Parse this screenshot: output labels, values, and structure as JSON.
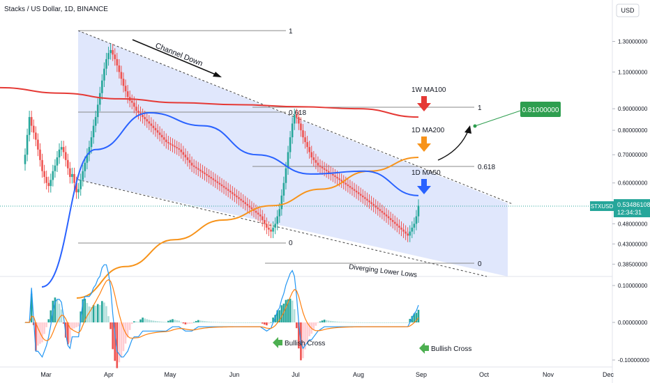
{
  "header": {
    "title": "Stacks / US Dollar, 1D, BINANCE",
    "currency_button": "USD"
  },
  "colors": {
    "up": "#26a69a",
    "down": "#ef5350",
    "ma100w": "#e53935",
    "ma200d": "#f7931a",
    "ma50d": "#2962ff",
    "channel_fill": "#dbe3fb",
    "macd_line": "#2196f3",
    "signal_line": "#ff7f0e",
    "target_box": "#2e9e4f"
  },
  "chart_data": [
    {
      "type": "candlestick",
      "symbol": "STXUSD",
      "y_scale": "log",
      "y_ticks": [
        "1.30000000",
        "1.10000000",
        "0.90000000",
        "0.80000000",
        "0.70000000",
        "0.60000000",
        "0.48000000",
        "0.43000000",
        "0.38500000"
      ],
      "x_ticks": [
        "Mar",
        "Apr",
        "May",
        "Jun",
        "Jul",
        "Aug",
        "Sep",
        "Oct",
        "Nov",
        "Dec"
      ],
      "last_price": "0.53486108",
      "countdown": "12:34:31",
      "target_price": "0.81000000",
      "annotations": {
        "channel": "Channel Down",
        "ma100": "1W MA100",
        "ma200": "1D MA200",
        "ma50": "1D MA50",
        "lower_lows": "Diverging Lower Lows"
      },
      "fib_labels": {
        "top_one": "1",
        "top_618": "0.618",
        "top_zero": "0",
        "right_one": "1",
        "right_618": "0.618",
        "right_zero": "0"
      },
      "series": [
        {
          "name": "1W MA100",
          "y": [
            1.01,
            0.98,
            0.95,
            0.93,
            0.92,
            0.91,
            0.9,
            0.86
          ]
        },
        {
          "name": "1D MA200",
          "y": [
            0.32,
            0.38,
            0.44,
            0.49,
            0.53,
            0.58,
            0.64,
            0.69
          ]
        },
        {
          "name": "1D MA50",
          "y": [
            0.34,
            0.72,
            0.88,
            0.82,
            0.7,
            0.63,
            0.64,
            0.56
          ]
        }
      ],
      "closes": [
        0.7,
        0.78,
        0.86,
        0.82,
        0.79,
        0.76,
        0.72,
        0.68,
        0.64,
        0.62,
        0.6,
        0.59,
        0.61,
        0.64,
        0.66,
        0.69,
        0.72,
        0.73,
        0.71,
        0.68,
        0.65,
        0.62,
        0.63,
        0.6,
        0.57,
        0.58,
        0.61,
        0.64,
        0.67,
        0.7,
        0.73,
        0.77,
        0.82,
        0.86,
        0.92,
        0.98,
        1.05,
        1.12,
        1.18,
        1.22,
        1.24,
        1.21,
        1.18,
        1.14,
        1.1,
        1.06,
        1.02,
        0.99,
        0.96,
        0.94,
        0.93,
        0.91,
        0.89,
        0.88,
        0.87,
        0.86,
        0.85,
        0.84,
        0.83,
        0.82,
        0.81,
        0.8,
        0.79,
        0.78,
        0.77,
        0.76,
        0.75,
        0.745,
        0.74,
        0.735,
        0.73,
        0.725,
        0.72,
        0.71,
        0.7,
        0.69,
        0.68,
        0.67,
        0.66,
        0.655,
        0.65,
        0.645,
        0.64,
        0.635,
        0.63,
        0.625,
        0.62,
        0.615,
        0.61,
        0.605,
        0.6,
        0.595,
        0.59,
        0.585,
        0.58,
        0.575,
        0.57,
        0.565,
        0.56,
        0.555,
        0.55,
        0.545,
        0.54,
        0.535,
        0.53,
        0.525,
        0.52,
        0.515,
        0.51,
        0.505,
        0.5,
        0.49,
        0.48,
        0.47,
        0.465,
        0.46,
        0.47,
        0.48,
        0.5,
        0.52,
        0.56,
        0.6,
        0.65,
        0.71,
        0.77,
        0.83,
        0.87,
        0.86,
        0.83,
        0.8,
        0.77,
        0.75,
        0.73,
        0.71,
        0.69,
        0.68,
        0.67,
        0.66,
        0.655,
        0.65,
        0.645,
        0.64,
        0.635,
        0.63,
        0.625,
        0.62,
        0.615,
        0.61,
        0.605,
        0.6,
        0.595,
        0.59,
        0.585,
        0.58,
        0.575,
        0.57,
        0.565,
        0.56,
        0.555,
        0.55,
        0.545,
        0.54,
        0.535,
        0.53,
        0.525,
        0.52,
        0.515,
        0.51,
        0.505,
        0.5,
        0.495,
        0.49,
        0.485,
        0.48,
        0.475,
        0.47,
        0.465,
        0.46,
        0.455,
        0.45,
        0.46,
        0.47,
        0.48,
        0.5,
        0.53
      ],
      "macd": {
        "y_ticks": [
          "0.10000000",
          "0.00000000",
          "-0.10000000"
        ],
        "bullish_cross": "Bullish Cross"
      }
    }
  ]
}
